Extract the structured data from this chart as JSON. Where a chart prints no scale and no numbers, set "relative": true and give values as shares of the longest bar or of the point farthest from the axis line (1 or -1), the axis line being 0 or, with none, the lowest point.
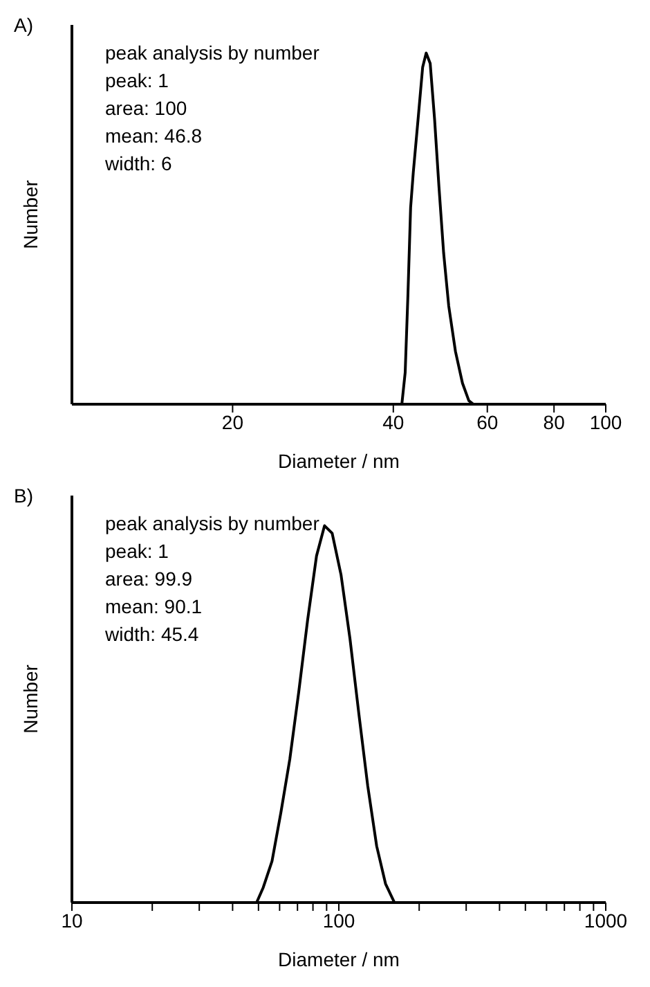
{
  "chart_data": [
    {
      "type": "line",
      "title": "A)",
      "xlabel": "Diameter / nm",
      "ylabel": "Number",
      "log": "x",
      "relative": true,
      "marker": "none",
      "line_style": "solid",
      "xlim": [
        10,
        100
      ],
      "xticks": [
        20,
        40,
        60,
        80,
        100
      ],
      "annotations": [
        "peak analysis by number",
        "peak: 1",
        "area: 100",
        "mean: 46.8",
        "width: 6"
      ],
      "series": [
        {
          "color": "#000000",
          "x": [
            41.5,
            42.1,
            42.6,
            43.1,
            43.6,
            44.5,
            45.4,
            46.1,
            46.9,
            47.8,
            48.7,
            49.7,
            50.8,
            52.3,
            53.9,
            55.4,
            56.5
          ],
          "values": [
            0,
            0.09,
            0.31,
            0.56,
            0.66,
            0.81,
            0.96,
            1,
            0.97,
            0.81,
            0.62,
            0.43,
            0.28,
            0.15,
            0.06,
            0.01,
            0
          ]
        }
      ]
    },
    {
      "type": "line",
      "title": "B)",
      "xlabel": "Diameter / nm",
      "ylabel": "Number",
      "log": "x",
      "relative": true,
      "marker": "none",
      "line_style": "solid",
      "xlim": [
        10,
        1000
      ],
      "xticks": [
        10,
        {
          "value": 20,
          "label": null
        },
        {
          "value": 30,
          "label": null
        },
        {
          "value": 40,
          "label": null
        },
        {
          "value": 50,
          "label": null
        },
        {
          "value": 60,
          "label": null
        },
        {
          "value": 70,
          "label": null
        },
        {
          "value": 80,
          "label": null
        },
        {
          "value": 90,
          "label": null
        },
        100,
        {
          "value": 200,
          "label": null
        },
        {
          "value": 300,
          "label": null
        },
        {
          "value": 400,
          "label": null
        },
        {
          "value": 500,
          "label": null
        },
        {
          "value": 600,
          "label": null
        },
        {
          "value": 700,
          "label": null
        },
        {
          "value": 800,
          "label": null
        },
        {
          "value": 900,
          "label": null
        },
        1000
      ],
      "annotations": [
        "peak analysis by number",
        "peak: 1",
        "area: 99.9",
        "mean: 90.1",
        "width: 45.4"
      ],
      "series": [
        {
          "color": "#000000",
          "x": [
            49.2,
            52.1,
            56.2,
            60.7,
            65.5,
            70.8,
            76.4,
            82.5,
            88.4,
            94.4,
            101.9,
            110.1,
            118.9,
            128.3,
            138.6,
            149.6,
            161.6
          ],
          "values": [
            0,
            0.04,
            0.11,
            0.24,
            0.38,
            0.56,
            0.75,
            0.92,
            1,
            0.98,
            0.87,
            0.7,
            0.5,
            0.31,
            0.15,
            0.05,
            0
          ]
        }
      ]
    }
  ]
}
